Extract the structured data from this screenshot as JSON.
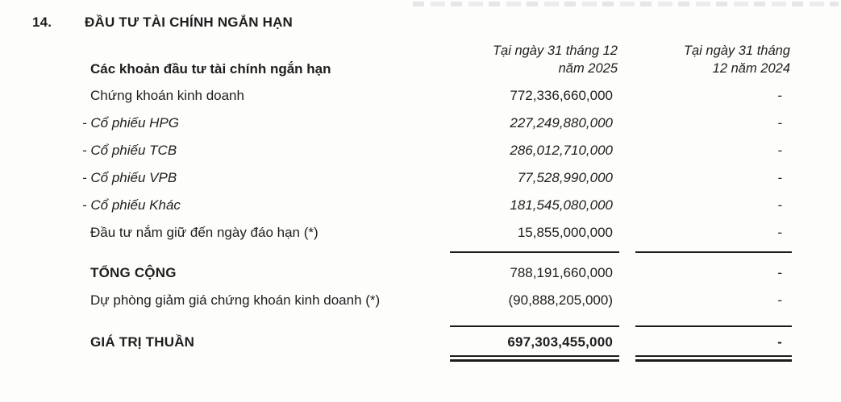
{
  "section": {
    "number": "14.",
    "title": "ĐẦU TƯ TÀI CHÍNH NGẮN HẠN"
  },
  "table": {
    "columns": {
      "label_header": "Các khoản đầu tư tài chính ngắn hạn",
      "col2025": {
        "line1": "Tại ngày 31 tháng 12",
        "line2": "năm 2025"
      },
      "col2024": {
        "line1": "Tại ngày 31 tháng",
        "line2": "12 năm 2024"
      }
    },
    "rows": [
      {
        "label": "Chứng khoán kinh doanh",
        "v2025": "772,336,660,000",
        "v2024": "-"
      },
      {
        "label": "- Cổ phiếu HPG",
        "v2025": "227,249,880,000",
        "v2024": "-"
      },
      {
        "label": "- Cổ phiếu TCB",
        "v2025": "286,012,710,000",
        "v2024": "-"
      },
      {
        "label": "- Cổ phiếu VPB",
        "v2025": "77,528,990,000",
        "v2024": "-"
      },
      {
        "label": "- Cổ phiếu Khác",
        "v2025": "181,545,080,000",
        "v2024": "-"
      },
      {
        "label": "Đầu tư nắm giữ đến ngày đáo hạn (*)",
        "v2025": "15,855,000,000",
        "v2024": "-"
      },
      {
        "label": "TỔNG CỘNG",
        "v2025": "788,191,660,000",
        "v2024": "-"
      },
      {
        "label": "Dự phòng giảm giá chứng khoán kinh doanh (*)",
        "v2025": "(90,888,205,000)",
        "v2024": "-"
      },
      {
        "label": "GIÁ TRỊ THUẦN",
        "v2025": "697,303,455,000",
        "v2024": "-"
      }
    ]
  }
}
